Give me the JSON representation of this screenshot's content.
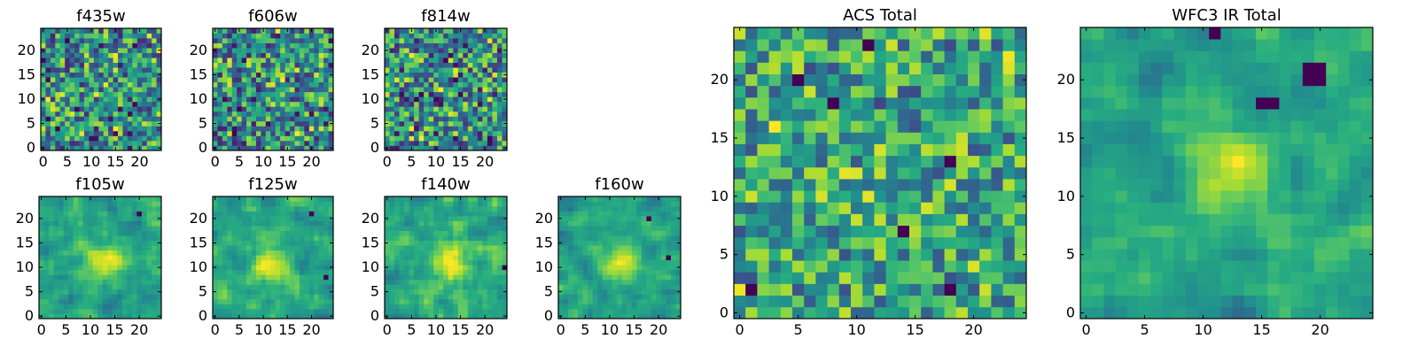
{
  "chart_data": {
    "type": "heatmap",
    "colormap": "viridis",
    "grid": false,
    "panels": [
      {
        "title": "f435w",
        "xticks": [
          "0",
          "5",
          "10",
          "15",
          "20"
        ],
        "yticks": [
          "0",
          "5",
          "10",
          "15",
          "20"
        ],
        "xlim": [
          0,
          24
        ],
        "ylim": [
          0,
          24
        ],
        "n": 25,
        "seed": 11,
        "smooth": 0,
        "hotspot": null,
        "dark_spots": []
      },
      {
        "title": "f606w",
        "xticks": [
          "0",
          "5",
          "10",
          "15",
          "20"
        ],
        "yticks": [
          "0",
          "5",
          "10",
          "15",
          "20"
        ],
        "xlim": [
          0,
          24
        ],
        "ylim": [
          0,
          24
        ],
        "n": 25,
        "seed": 23,
        "smooth": 0,
        "hotspot": null,
        "dark_spots": []
      },
      {
        "title": "f814w",
        "xticks": [
          "0",
          "5",
          "10",
          "15",
          "20"
        ],
        "yticks": [
          "0",
          "5",
          "10",
          "15",
          "20"
        ],
        "xlim": [
          0,
          24
        ],
        "ylim": [
          0,
          24
        ],
        "n": 25,
        "seed": 37,
        "smooth": 0,
        "hotspot": null,
        "dark_spots": []
      },
      {
        "title": "f105w",
        "xticks": [
          "0",
          "5",
          "10",
          "15",
          "20"
        ],
        "yticks": [
          "0",
          "5",
          "10",
          "15",
          "20"
        ],
        "xlim": [
          0,
          24
        ],
        "ylim": [
          0,
          24
        ],
        "n": 25,
        "seed": 41,
        "smooth": 1,
        "hotspot": [
          13,
          11
        ],
        "dark_spots": [
          [
            20,
            21
          ]
        ]
      },
      {
        "title": "f125w",
        "xticks": [
          "0",
          "5",
          "10",
          "15",
          "20"
        ],
        "yticks": [
          "0",
          "5",
          "10",
          "15",
          "20"
        ],
        "xlim": [
          0,
          24
        ],
        "ylim": [
          0,
          24
        ],
        "n": 25,
        "seed": 53,
        "smooth": 1,
        "hotspot": [
          12,
          10
        ],
        "dark_spots": [
          [
            20,
            21
          ],
          [
            23,
            8
          ]
        ]
      },
      {
        "title": "f140w",
        "xticks": [
          "0",
          "5",
          "10",
          "15",
          "20"
        ],
        "yticks": [
          "0",
          "5",
          "10",
          "15",
          "20"
        ],
        "xlim": [
          0,
          24
        ],
        "ylim": [
          0,
          24
        ],
        "n": 25,
        "seed": 67,
        "smooth": 1,
        "hotspot": [
          13,
          11
        ],
        "dark_spots": [
          [
            24,
            10
          ]
        ]
      },
      {
        "title": "f160w",
        "xticks": [
          "0",
          "5",
          "10",
          "15",
          "20"
        ],
        "yticks": [
          "0",
          "5",
          "10",
          "15",
          "20"
        ],
        "xlim": [
          0,
          24
        ],
        "ylim": [
          0,
          24
        ],
        "n": 25,
        "seed": 71,
        "smooth": 1,
        "hotspot": [
          12,
          11
        ],
        "dark_spots": [
          [
            18,
            20
          ],
          [
            22,
            12
          ]
        ]
      },
      {
        "title": "ACS Total",
        "xticks": [
          "0",
          "5",
          "10",
          "15",
          "20"
        ],
        "yticks": [
          "0",
          "5",
          "10",
          "15",
          "20"
        ],
        "xlim": [
          0,
          24
        ],
        "ylim": [
          0,
          24
        ],
        "n": 25,
        "seed": 89,
        "smooth": 0,
        "hotspot": null,
        "dark_spots": [
          [
            11,
            23
          ],
          [
            5,
            20
          ],
          [
            8,
            18
          ],
          [
            18,
            13
          ],
          [
            14,
            7
          ],
          [
            1,
            2
          ],
          [
            18,
            2
          ]
        ]
      },
      {
        "title": "WFC3 IR Total",
        "xticks": [
          "0",
          "5",
          "10",
          "15",
          "20"
        ],
        "yticks": [
          "0",
          "5",
          "10",
          "15",
          "20"
        ],
        "xlim": [
          0,
          24
        ],
        "ylim": [
          0,
          24
        ],
        "n": 25,
        "seed": 97,
        "smooth": 1,
        "hotspot": [
          12,
          12
        ],
        "dark_spots": [
          [
            19,
            21
          ],
          [
            20,
            21
          ],
          [
            19,
            20
          ],
          [
            20,
            20
          ],
          [
            11,
            24
          ],
          [
            15,
            18
          ],
          [
            16,
            18
          ]
        ]
      }
    ]
  }
}
